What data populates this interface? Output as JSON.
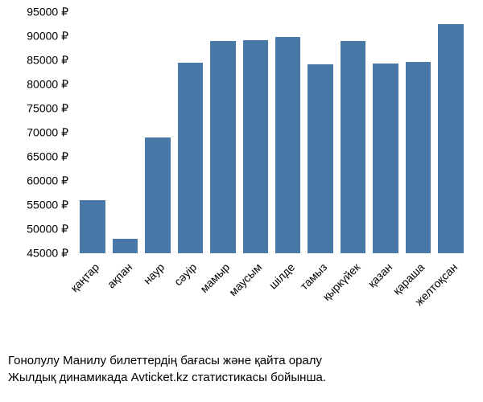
{
  "chart": {
    "type": "bar",
    "categories": [
      "қаңтар",
      "ақпан",
      "наур",
      "сәуір",
      "мамыр",
      "маусым",
      "шілде",
      "тамыз",
      "қыркүйек",
      "қазан",
      "қараша",
      "желтоқсан"
    ],
    "values": [
      56000,
      48000,
      69000,
      84500,
      89000,
      89200,
      89800,
      84200,
      89000,
      84300,
      84700,
      92500
    ],
    "bar_color": "#4878a8",
    "background_color": "#ffffff",
    "text_color": "#000000",
    "ymin": 45000,
    "ymax": 95000,
    "ytick_step": 5000,
    "ytick_suffix": " ₽",
    "bar_width_ratio": 0.78,
    "label_fontsize": 14,
    "x_label_rotation": -45
  },
  "caption": {
    "line1": "Гонолулу Манилу билеттердің бағасы және қайта оралу",
    "line2": "Жылдық динамикада Avticket.kz статистикасы бойынша."
  }
}
